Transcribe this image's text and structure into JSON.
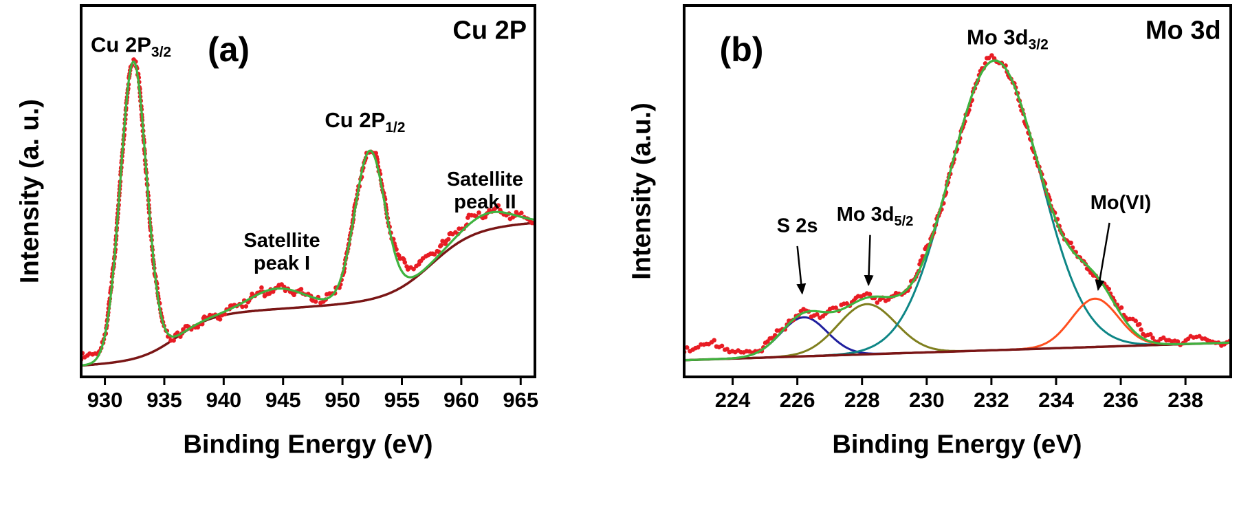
{
  "figure": {
    "background": "#ffffff",
    "panel_count": 2
  },
  "chart_data": [
    {
      "id": "a",
      "type": "line",
      "subtype": "XPS spectrum with fit",
      "panel_letter": "(a)",
      "corner_label": "Cu 2P",
      "xlabel": "Binding Energy (eV)",
      "ylabel": "Intensity (a. u.)",
      "xlim": [
        928,
        966.2
      ],
      "xticks": [
        930,
        935,
        940,
        945,
        950,
        955,
        960,
        965
      ],
      "grid": false,
      "colors": {
        "data": "#e81c24",
        "fit": "#3fb33f",
        "background": "#7a1616"
      },
      "series": [
        {
          "name": "experimental data",
          "style": "dots"
        },
        {
          "name": "fit envelope",
          "style": "line"
        },
        {
          "name": "Shirley background",
          "style": "line"
        }
      ],
      "background_curve": {
        "b0": 0.03,
        "slope": 0.002,
        "steps": [
          {
            "center": 936.0,
            "height": 0.12,
            "width": 1.5
          },
          {
            "center": 957.5,
            "height": 0.19,
            "width": 1.8
          }
        ]
      },
      "peaks": [
        {
          "label": "Cu 2P_{3/2}",
          "center": 932.4,
          "fwhm": 2.6,
          "amplitude": 0.8
        },
        {
          "label": "Satellite peak I",
          "center": 944.5,
          "fwhm": 5.5,
          "amplitude": 0.055
        },
        {
          "label": "Cu 2P_{1/2}",
          "center": 952.3,
          "fwhm": 3.0,
          "amplitude": 0.4
        },
        {
          "label": "Satellite peak II",
          "center": 962.3,
          "fwhm": 5.0,
          "amplitude": 0.045
        }
      ],
      "data_extra": [
        {
          "center": 928.5,
          "fwhm": 2.5,
          "amplitude": 0.02
        },
        {
          "center": 955.8,
          "fwhm": 4.0,
          "amplitude": 0.028
        },
        {
          "center": 959.5,
          "fwhm": 4.0,
          "amplitude": 0.012
        }
      ],
      "noise": {
        "amplitudes": [
          0.007,
          0.005,
          0.003
        ],
        "freqs": [
          3.1,
          7.9,
          17.0
        ],
        "phases": [
          0.7,
          2.1,
          1.3
        ],
        "jitter": 0.006
      },
      "annotations": [
        {
          "text": "Cu 2P_{3/2}",
          "x": 932.2,
          "y": 0.875,
          "size": 31,
          "name": "peak-label-cu2p32"
        },
        {
          "text": "(a)",
          "xnorm": 0.325,
          "y": 0.85,
          "size": 50,
          "name": "panel-letter-a"
        },
        {
          "text": "Cu 2P",
          "xnorm": 0.982,
          "y": 0.91,
          "size": 38,
          "anchor": "end",
          "name": "corner-label-cu2p"
        },
        {
          "text": "Satellite\npeak I",
          "x": 944.9,
          "y": 0.35,
          "size": 29,
          "name": "peak-label-satellite-1"
        },
        {
          "text": "Cu 2P_{1/2}",
          "x": 951.9,
          "y": 0.672,
          "size": 31,
          "name": "peak-label-cu2p12"
        },
        {
          "text": "Satellite\npeak II",
          "x": 962.0,
          "y": 0.515,
          "size": 29,
          "name": "peak-label-satellite-2"
        }
      ]
    },
    {
      "id": "b",
      "type": "line",
      "subtype": "XPS spectrum with fit components",
      "panel_letter": "(b)",
      "corner_label": "Mo 3d",
      "xlabel": "Binding Energy (eV)",
      "ylabel": "Intensity (a.u.)",
      "xlim": [
        222.5,
        239.4
      ],
      "xticks": [
        224,
        226,
        228,
        230,
        232,
        234,
        236,
        238
      ],
      "grid": false,
      "colors": {
        "data": "#e81c24",
        "fit": "#3fb33f",
        "background": "#7a1616"
      },
      "series": [
        {
          "name": "experimental data",
          "style": "dots"
        },
        {
          "name": "fit envelope",
          "style": "line"
        },
        {
          "name": "background",
          "style": "line"
        },
        {
          "name": "S 2s component",
          "style": "line"
        },
        {
          "name": "Mo 3d5/2 component",
          "style": "line"
        },
        {
          "name": "Mo 3d3/2 component",
          "style": "line"
        },
        {
          "name": "Mo(VI) component",
          "style": "line"
        }
      ],
      "background_curve": {
        "b0": 0.045,
        "slope": 0.0028,
        "steps": []
      },
      "peaks": [
        {
          "label": "S 2s",
          "center": 226.2,
          "fwhm": 1.7,
          "amplitude": 0.105,
          "color": "#1f1f9e"
        },
        {
          "label": "Mo 3d_{5/2}",
          "center": 228.15,
          "fwhm": 2.1,
          "amplitude": 0.135,
          "color": "#7f7f1e"
        },
        {
          "label": "Mo 3d_{3/2}",
          "center": 232.1,
          "fwhm": 3.3,
          "amplitude": 0.78,
          "color": "#0e8686"
        },
        {
          "label": "Mo(VI)",
          "center": 235.2,
          "fwhm": 1.7,
          "amplitude": 0.13,
          "color": "#ff4f1f"
        }
      ],
      "data_extra": [
        {
          "center": 223.2,
          "fwhm": 2.2,
          "amplitude": 0.035
        },
        {
          "center": 236.9,
          "fwhm": 2.4,
          "amplitude": 0.016
        }
      ],
      "noise": {
        "amplitudes": [
          0.008,
          0.005,
          0.003
        ],
        "freqs": [
          2.9,
          6.7,
          15.3
        ],
        "phases": [
          1.1,
          0.4,
          2.6
        ],
        "jitter": 0.007
      },
      "annotations": [
        {
          "text": "(b)",
          "xnorm": 0.105,
          "y": 0.85,
          "size": 50,
          "name": "panel-letter-b"
        },
        {
          "text": "Mo 3d",
          "xnorm": 0.982,
          "y": 0.91,
          "size": 38,
          "anchor": "end",
          "name": "corner-label-mo3d"
        },
        {
          "text": "Mo 3d_{3/2}",
          "x": 232.5,
          "y": 0.895,
          "size": 31,
          "name": "peak-label-mo3d32"
        },
        {
          "text": "S 2s",
          "x": 226.0,
          "y": 0.39,
          "size": 29,
          "name": "peak-label-s2s",
          "arrow": {
            "from": [
              226.0,
              0.352
            ],
            "to": [
              226.15,
              0.225
            ]
          }
        },
        {
          "text": "Mo 3d_{5/2}",
          "x": 228.4,
          "y": 0.42,
          "size": 29,
          "name": "peak-label-mo3d52",
          "arrow": {
            "from": [
              228.25,
              0.382
            ],
            "to": [
              228.2,
              0.248
            ]
          }
        },
        {
          "text": "Mo(VI)",
          "x": 236.0,
          "y": 0.452,
          "size": 29,
          "name": "peak-label-movi",
          "arrow": {
            "from": [
              235.65,
              0.415
            ],
            "to": [
              235.3,
              0.235
            ]
          }
        }
      ]
    }
  ]
}
